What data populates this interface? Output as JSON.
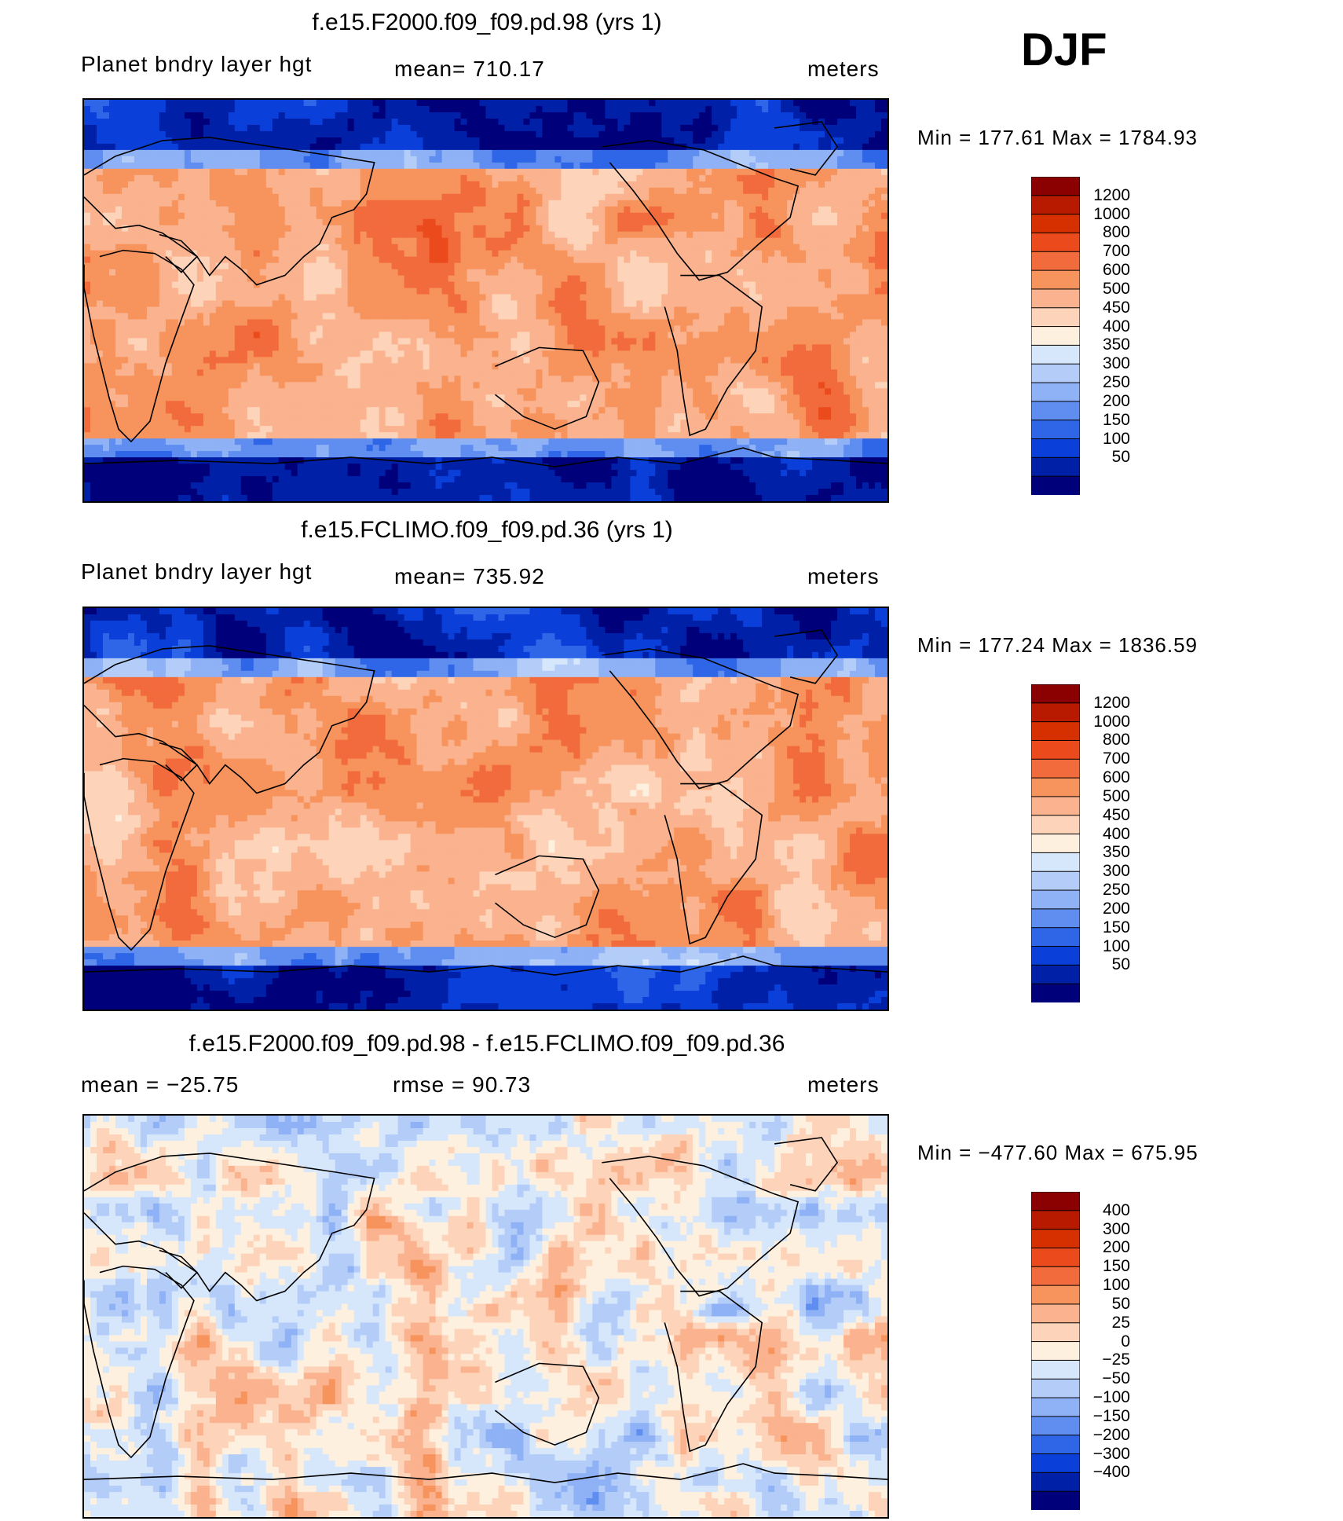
{
  "season": "DJF",
  "panels": [
    {
      "id": "panel1",
      "title": "f.e15.F2000.f09_f09.pd.98 (yrs 1)",
      "left_label": "Planet bndry layer hgt",
      "center_label": "mean=  710.17",
      "right_label": "meters",
      "minmax": "Min  =  177.61  Max  =  1784.93",
      "colorbar_labels": [
        "1200",
        "1000",
        "800",
        "700",
        "600",
        "500",
        "450",
        "400",
        "350",
        "300",
        "250",
        "200",
        "150",
        "100",
        "50"
      ],
      "colorbar_colors": [
        "#8b0000",
        "#b81a00",
        "#d73000",
        "#eb4a1c",
        "#f26b3d",
        "#f7935c",
        "#fab38e",
        "#fdd4ba",
        "#fef0df",
        "#d6e6fb",
        "#b3cdf8",
        "#8fb1f5",
        "#5f8df0",
        "#2f66e8",
        "#0a3fd9",
        "#0020a8",
        "#00007a"
      ]
    },
    {
      "id": "panel2",
      "title": "f.e15.FCLIMO.f09_f09.pd.36 (yrs 1)",
      "left_label": "Planet bndry layer hgt",
      "center_label": "mean=  735.92",
      "right_label": "meters",
      "minmax": "Min  =  177.24  Max  =  1836.59",
      "colorbar_labels": [
        "1200",
        "1000",
        "800",
        "700",
        "600",
        "500",
        "450",
        "400",
        "350",
        "300",
        "250",
        "200",
        "150",
        "100",
        "50"
      ],
      "colorbar_colors": [
        "#8b0000",
        "#b81a00",
        "#d73000",
        "#eb4a1c",
        "#f26b3d",
        "#f7935c",
        "#fab38e",
        "#fdd4ba",
        "#fef0df",
        "#d6e6fb",
        "#b3cdf8",
        "#8fb1f5",
        "#5f8df0",
        "#2f66e8",
        "#0a3fd9",
        "#0020a8",
        "#00007a"
      ]
    },
    {
      "id": "panel3",
      "title": "f.e15.F2000.f09_f09.pd.98 - f.e15.FCLIMO.f09_f09.pd.36",
      "left_label": "mean  =  −25.75",
      "center_label": "rmse  =    90.73",
      "right_label": "meters",
      "minmax": "Min  =  −477.60  Max  =  675.95",
      "colorbar_labels": [
        "400",
        "300",
        "200",
        "150",
        "100",
        "50",
        "25",
        "0",
        "−25",
        "−50",
        "−100",
        "−150",
        "−200",
        "−300",
        "−400"
      ],
      "colorbar_colors": [
        "#8b0000",
        "#b81a00",
        "#d73000",
        "#eb4a1c",
        "#f26b3d",
        "#f7935c",
        "#fab38e",
        "#fdd4ba",
        "#fef0df",
        "#d6e6fb",
        "#b3cdf8",
        "#8fb1f5",
        "#5f8df0",
        "#2f66e8",
        "#0a3fd9",
        "#0020a8",
        "#00007a"
      ]
    }
  ],
  "chart_data": [
    {
      "type": "heatmap",
      "title": "f.e15.F2000.f09_f09.pd.98 (yrs 1)",
      "variable": "Planet bndry layer hgt",
      "units": "meters",
      "mean": 710.17,
      "min": 177.61,
      "max": 1784.93,
      "contour_levels": [
        50,
        100,
        150,
        200,
        250,
        300,
        350,
        400,
        450,
        500,
        600,
        700,
        800,
        1000,
        1200
      ]
    },
    {
      "type": "heatmap",
      "title": "f.e15.FCLIMO.f09_f09.pd.36 (yrs 1)",
      "variable": "Planet bndry layer hgt",
      "units": "meters",
      "mean": 735.92,
      "min": 177.24,
      "max": 1836.59,
      "contour_levels": [
        50,
        100,
        150,
        200,
        250,
        300,
        350,
        400,
        450,
        500,
        600,
        700,
        800,
        1000,
        1200
      ]
    },
    {
      "type": "heatmap",
      "title": "f.e15.F2000.f09_f09.pd.98 - f.e15.FCLIMO.f09_f09.pd.36",
      "units": "meters",
      "mean": -25.75,
      "rmse": 90.73,
      "min": -477.6,
      "max": 675.95,
      "contour_levels": [
        -400,
        -300,
        -200,
        -150,
        -100,
        -50,
        -25,
        0,
        25,
        50,
        100,
        150,
        200,
        300,
        400
      ]
    }
  ]
}
